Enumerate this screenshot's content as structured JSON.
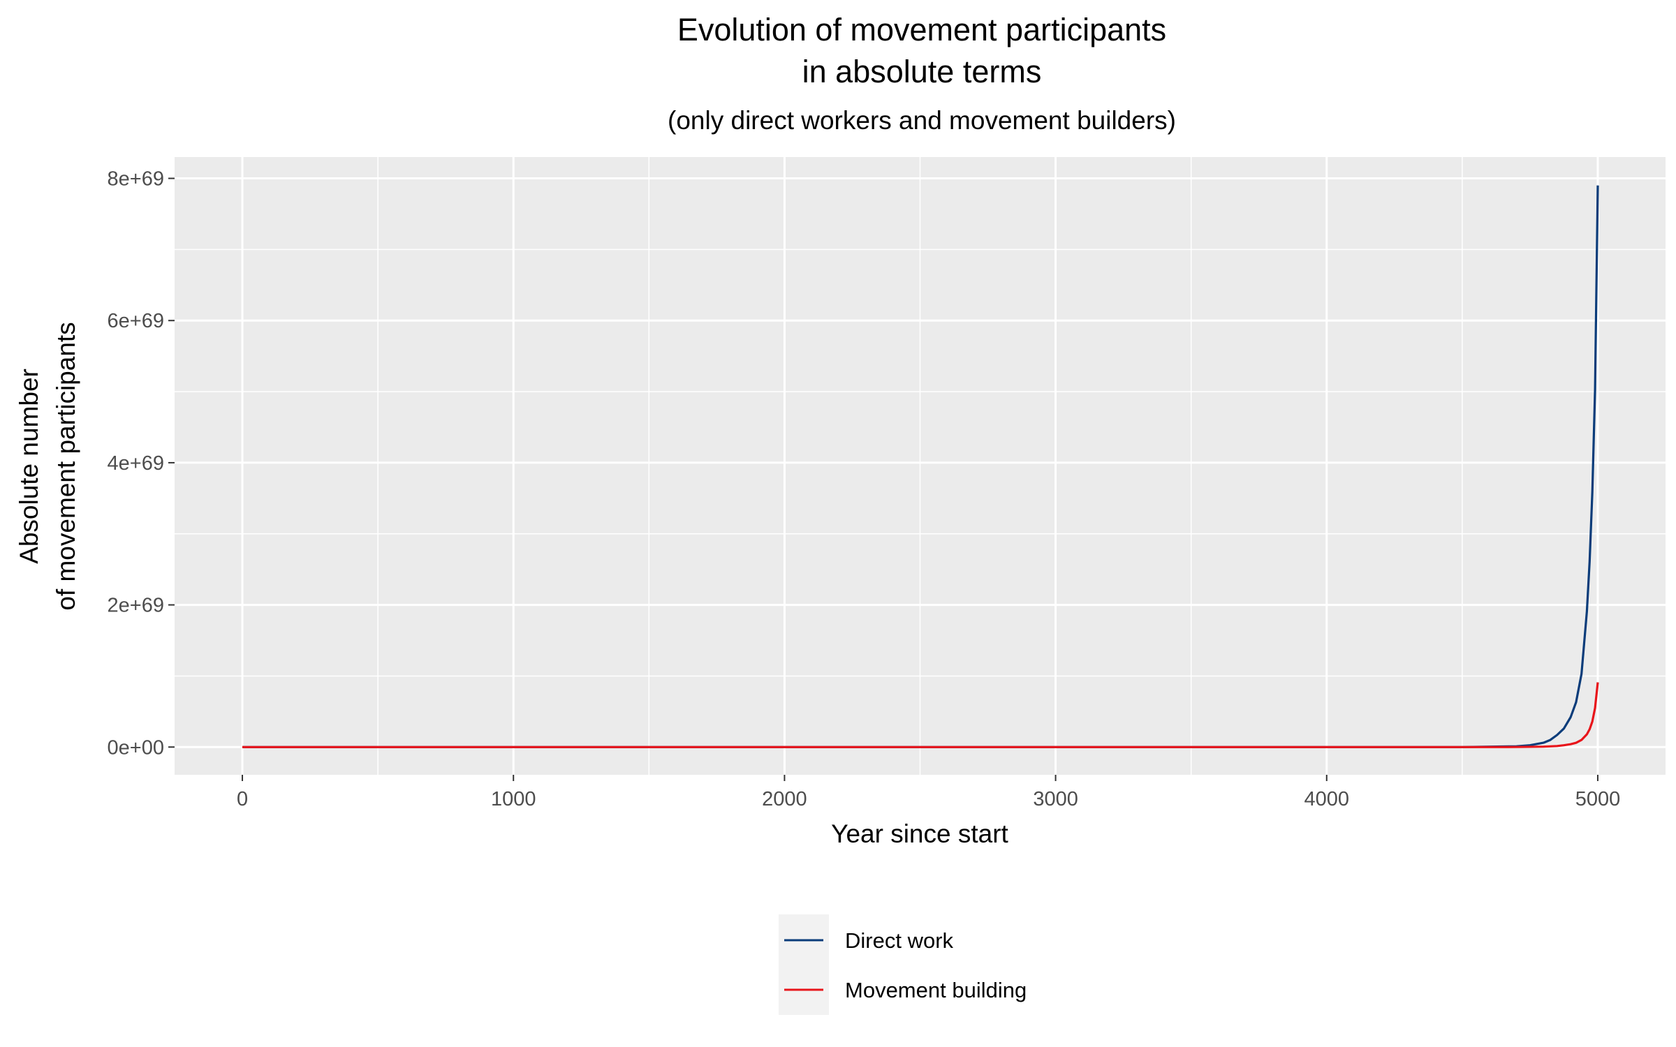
{
  "chart_data": {
    "type": "line",
    "title_lines": [
      "Evolution of movement participants",
      "in absolute terms"
    ],
    "subtitle": "(only direct workers and movement builders)",
    "xlabel": "Year since start",
    "ylabel_lines": [
      "Absolute number",
      "of movement participants"
    ],
    "xlim": [
      -250,
      5250
    ],
    "ylim": [
      -3.9e+68,
      8.3e+69
    ],
    "x_ticks": [
      0,
      1000,
      2000,
      3000,
      4000,
      5000
    ],
    "x_tick_labels": [
      "0",
      "1000",
      "2000",
      "3000",
      "4000",
      "5000"
    ],
    "x_minor_ticks": [
      500,
      1500,
      2500,
      3500,
      4500
    ],
    "y_ticks": [
      0,
      2e+69,
      4e+69,
      6e+69,
      8e+69
    ],
    "y_tick_labels": [
      "0e+00",
      "2e+69",
      "4e+69",
      "6e+69",
      "8e+69"
    ],
    "y_minor_ticks": [
      1e+69,
      3e+69,
      5e+69,
      7e+69
    ],
    "grid": true,
    "legend_position": "bottom",
    "series": [
      {
        "name": "Direct work",
        "color": "#0b3c7a",
        "x": [
          0,
          1000,
          2000,
          3000,
          4000,
          4500,
          4700,
          4750,
          4800,
          4825,
          4850,
          4875,
          4900,
          4920,
          4940,
          4960,
          4970,
          4980,
          4990,
          5000
        ],
        "y": [
          0,
          0,
          0,
          0,
          0,
          0,
          1.1e+67,
          2.5e+67,
          6.1e+67,
          1e+68,
          1.7e+68,
          2.6e+68,
          4.2e+68,
          6.3e+68,
          1.03e+69,
          1.91e+69,
          2.61e+69,
          3.59e+69,
          5.03e+69,
          7.9e+69
        ]
      },
      {
        "name": "Movement building",
        "color": "#e8151b",
        "x": [
          0,
          1000,
          2000,
          3000,
          4000,
          4500,
          4700,
          4800,
          4850,
          4875,
          4900,
          4920,
          4940,
          4960,
          4970,
          4980,
          4990,
          5000
        ],
        "y": [
          0,
          0,
          0,
          0,
          0,
          0,
          1e+66,
          6e+66,
          1.5e+67,
          2.5e+67,
          4e+67,
          6e+67,
          1e+68,
          1.8e+68,
          2.5e+68,
          3.6e+68,
          5.5e+68,
          9.1e+68
        ]
      }
    ]
  }
}
